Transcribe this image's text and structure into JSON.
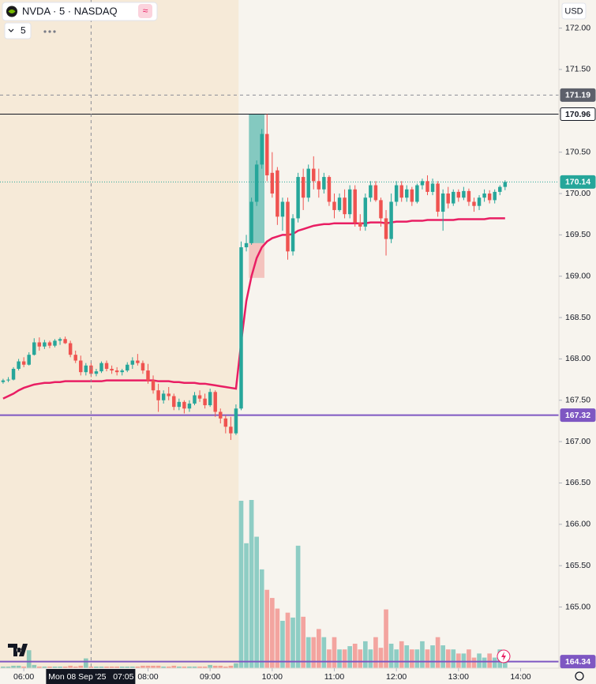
{
  "header": {
    "symbol": "NVDA · 5 · NASDAQ",
    "interval": "5",
    "currency": "USD"
  },
  "chart_data": {
    "type": "candlestick",
    "x": [
      "05:40",
      "05:45",
      "05:50",
      "05:55",
      "06:00",
      "06:05",
      "06:10",
      "06:15",
      "06:20",
      "06:25",
      "06:30",
      "06:35",
      "06:40",
      "06:45",
      "06:50",
      "06:55",
      "07:00",
      "07:05",
      "07:10",
      "07:15",
      "07:20",
      "07:25",
      "07:30",
      "07:35",
      "07:40",
      "07:45",
      "07:50",
      "07:55",
      "08:00",
      "08:05",
      "08:10",
      "08:15",
      "08:20",
      "08:25",
      "08:30",
      "08:35",
      "08:40",
      "08:45",
      "08:50",
      "08:55",
      "09:00",
      "09:05",
      "09:10",
      "09:15",
      "09:20",
      "09:25",
      "09:30",
      "09:35",
      "09:40",
      "09:45",
      "09:50",
      "09:55",
      "10:00",
      "10:05",
      "10:10",
      "10:15",
      "10:20",
      "10:25",
      "10:30",
      "10:35",
      "10:40",
      "10:45",
      "10:50",
      "10:55",
      "11:00",
      "11:05",
      "11:10",
      "11:15",
      "11:20",
      "11:25",
      "11:30",
      "11:35",
      "11:40",
      "11:45",
      "11:50",
      "11:55",
      "12:00",
      "12:05",
      "12:10",
      "12:15",
      "12:20",
      "12:25",
      "12:30",
      "12:35",
      "12:40",
      "12:45",
      "12:50",
      "12:55",
      "13:00",
      "13:05",
      "13:10",
      "13:15",
      "13:20",
      "13:25",
      "13:30",
      "13:35",
      "13:40",
      "13:45"
    ],
    "open": [
      167.72,
      167.74,
      167.75,
      167.88,
      167.97,
      167.93,
      168.05,
      168.2,
      168.15,
      168.2,
      168.16,
      168.22,
      168.24,
      168.19,
      168.05,
      167.98,
      167.84,
      167.92,
      167.82,
      167.85,
      167.95,
      167.88,
      167.86,
      167.84,
      167.86,
      167.93,
      167.98,
      167.95,
      167.86,
      167.74,
      167.62,
      167.5,
      167.58,
      167.55,
      167.42,
      167.48,
      167.4,
      167.46,
      167.56,
      167.52,
      167.44,
      167.6,
      167.36,
      167.28,
      167.18,
      167.1,
      167.4,
      169.35,
      169.4,
      169.9,
      170.35,
      170.72,
      170.25,
      170.28,
      169.72,
      169.9,
      169.3,
      169.7,
      170.2,
      169.95,
      170.3,
      170.15,
      170.05,
      170.2,
      169.9,
      169.8,
      169.95,
      169.75,
      170.05,
      169.65,
      169.6,
      169.95,
      170.1,
      169.92,
      169.7,
      169.45,
      169.9,
      170.1,
      169.95,
      170.05,
      169.9,
      170.1,
      170.15,
      170.02,
      170.12,
      169.78,
      170.0,
      169.88,
      170.02,
      169.95,
      170.03,
      169.9,
      169.85,
      169.95,
      170.0,
      169.92,
      170.02,
      170.08
    ],
    "high": [
      167.76,
      167.78,
      167.9,
      168.0,
      168.02,
      168.08,
      168.25,
      168.26,
      168.23,
      168.22,
      168.24,
      168.26,
      168.27,
      168.22,
      168.1,
      168.04,
      167.95,
      167.96,
      167.88,
      167.97,
      167.98,
      167.92,
      167.9,
      167.88,
      167.96,
      168.02,
      168.06,
      167.98,
      167.94,
      167.8,
      167.7,
      167.62,
      167.66,
      167.58,
      167.52,
      167.5,
      167.5,
      167.6,
      167.62,
      167.58,
      167.64,
      167.62,
      167.4,
      167.32,
      167.3,
      167.45,
      169.42,
      169.5,
      169.95,
      170.4,
      170.78,
      170.96,
      170.5,
      170.32,
      169.95,
      169.95,
      169.75,
      170.25,
      170.3,
      170.35,
      170.45,
      170.3,
      170.25,
      170.22,
      170.0,
      170.0,
      170.05,
      170.1,
      170.1,
      169.75,
      170.0,
      170.15,
      170.15,
      169.95,
      169.8,
      170.0,
      170.15,
      170.15,
      170.1,
      170.08,
      170.12,
      170.18,
      170.22,
      170.18,
      170.15,
      170.05,
      170.08,
      170.05,
      170.05,
      170.08,
      170.06,
      169.95,
      169.98,
      170.05,
      170.04,
      170.05,
      170.1,
      170.16
    ],
    "low": [
      167.7,
      167.72,
      167.74,
      167.86,
      167.9,
      167.92,
      168.04,
      168.1,
      168.12,
      168.13,
      168.14,
      168.17,
      168.18,
      168.02,
      167.95,
      167.8,
      167.8,
      167.78,
      167.79,
      167.83,
      167.85,
      167.82,
      167.8,
      167.8,
      167.84,
      167.88,
      167.92,
      167.82,
      167.7,
      167.58,
      167.36,
      167.46,
      167.5,
      167.38,
      167.38,
      167.34,
      167.36,
      167.44,
      167.48,
      167.4,
      167.42,
      167.3,
      167.22,
      167.1,
      167.02,
      167.08,
      167.38,
      169.3,
      169.38,
      169.85,
      170.3,
      170.15,
      169.95,
      169.62,
      169.55,
      169.2,
      169.25,
      169.65,
      169.8,
      169.9,
      170.05,
      169.95,
      170.0,
      169.85,
      169.7,
      169.78,
      169.7,
      169.7,
      169.6,
      169.55,
      169.55,
      169.9,
      169.9,
      169.6,
      169.25,
      169.4,
      169.85,
      169.9,
      169.9,
      169.85,
      169.88,
      170.05,
      169.98,
      169.98,
      169.72,
      169.55,
      169.82,
      169.85,
      169.9,
      169.92,
      169.85,
      169.78,
      169.8,
      169.9,
      169.88,
      169.88,
      169.98,
      170.04
    ],
    "close": [
      167.74,
      167.75,
      167.88,
      167.97,
      167.93,
      168.05,
      168.2,
      168.15,
      168.2,
      168.16,
      168.22,
      168.24,
      168.19,
      168.05,
      167.98,
      167.84,
      167.92,
      167.82,
      167.85,
      167.95,
      167.88,
      167.86,
      167.84,
      167.86,
      167.93,
      167.98,
      167.95,
      167.86,
      167.74,
      167.62,
      167.5,
      167.58,
      167.55,
      167.42,
      167.48,
      167.4,
      167.46,
      167.56,
      167.52,
      167.44,
      167.6,
      167.36,
      167.28,
      167.18,
      167.1,
      167.4,
      169.35,
      169.4,
      169.9,
      170.35,
      170.72,
      170.22,
      170.0,
      169.72,
      169.9,
      169.3,
      169.7,
      170.2,
      169.95,
      170.3,
      170.15,
      170.05,
      170.2,
      169.9,
      169.8,
      169.95,
      169.75,
      170.05,
      169.65,
      169.6,
      169.95,
      170.1,
      169.92,
      169.7,
      169.45,
      169.9,
      170.1,
      169.95,
      170.05,
      169.9,
      170.1,
      170.15,
      170.02,
      170.12,
      169.78,
      170.0,
      169.88,
      170.02,
      169.95,
      170.03,
      169.9,
      169.85,
      169.95,
      170.0,
      169.92,
      170.02,
      170.08,
      170.14
    ],
    "volume": [
      2,
      2,
      3,
      3,
      2,
      22,
      4,
      2,
      2,
      2,
      2,
      2,
      2,
      3,
      2,
      3,
      12,
      2,
      2,
      2,
      2,
      2,
      2,
      2,
      2,
      2,
      2,
      3,
      3,
      3,
      3,
      2,
      2,
      3,
      2,
      2,
      2,
      2,
      2,
      2,
      4,
      3,
      3,
      2,
      3,
      6,
      205,
      153,
      206,
      161,
      121,
      96,
      86,
      73,
      58,
      68,
      62,
      150,
      63,
      38,
      38,
      48,
      38,
      23,
      38,
      23,
      23,
      27,
      30,
      23,
      33,
      23,
      38,
      25,
      72,
      30,
      23,
      33,
      28,
      23,
      23,
      33,
      23,
      28,
      38,
      28,
      23,
      23,
      18,
      18,
      23,
      13,
      18,
      13,
      18,
      13,
      23,
      10
    ],
    "ma": {
      "color": "#e91e63",
      "values": [
        167.52,
        167.55,
        167.58,
        167.62,
        167.65,
        167.67,
        167.69,
        167.7,
        167.71,
        167.71,
        167.72,
        167.72,
        167.73,
        167.73,
        167.73,
        167.73,
        167.73,
        167.73,
        167.73,
        167.73,
        167.74,
        167.74,
        167.74,
        167.74,
        167.74,
        167.74,
        167.74,
        167.74,
        167.74,
        167.74,
        167.73,
        167.73,
        167.73,
        167.72,
        167.72,
        167.71,
        167.71,
        167.71,
        167.7,
        167.7,
        167.69,
        167.68,
        167.67,
        167.66,
        167.65,
        167.64,
        168.2,
        168.7,
        169.0,
        169.22,
        169.35,
        169.42,
        169.46,
        169.48,
        169.5,
        169.5,
        169.51,
        169.55,
        169.57,
        169.59,
        169.61,
        169.62,
        169.63,
        169.63,
        169.64,
        169.64,
        169.64,
        169.64,
        169.64,
        169.64,
        169.64,
        169.65,
        169.65,
        169.65,
        169.64,
        169.65,
        169.66,
        169.66,
        169.66,
        169.67,
        169.67,
        169.67,
        169.68,
        169.68,
        169.68,
        169.68,
        169.68,
        169.68,
        169.69,
        169.69,
        169.69,
        169.69,
        169.69,
        169.69,
        169.7,
        169.7,
        169.7,
        169.7
      ]
    },
    "up_color": "#26a69a",
    "down_color": "#ef5350",
    "session_open": "09:30",
    "xlim": [
      "05:37",
      "14:37"
    ],
    "xticks": [
      "06:00",
      "08:00",
      "09:00",
      "10:00",
      "11:00",
      "12:00",
      "13:00",
      "14:00"
    ],
    "ylim": [
      164.26,
      172.34
    ],
    "yticks": [
      {
        "value": 165,
        "label": "165.00"
      },
      {
        "value": 165.5,
        "label": "165.50"
      },
      {
        "value": 166,
        "label": "166.00"
      },
      {
        "value": 166.5,
        "label": "166.50"
      },
      {
        "value": 167,
        "label": "167.00"
      },
      {
        "value": 167.5,
        "label": "167.50"
      },
      {
        "value": 168,
        "label": "168.00"
      },
      {
        "value": 168.5,
        "label": "168.50"
      },
      {
        "value": 169,
        "label": "169.00"
      },
      {
        "value": 169.5,
        "label": "169.50"
      },
      {
        "value": 170,
        "label": "170.00"
      },
      {
        "value": 170.5,
        "label": "170.50"
      },
      {
        "value": 171,
        "label": "171.00"
      },
      {
        "value": 171.5,
        "label": "171.50"
      },
      {
        "value": 172,
        "label": "172.00"
      }
    ],
    "levels": [
      {
        "value": 170.96,
        "color": "#131722",
        "style": "solid"
      },
      {
        "value": 170.14,
        "color": "#26a69a",
        "style": "dotted"
      },
      {
        "value": 167.32,
        "color": "#7e57c2",
        "style": "solid"
      },
      {
        "value": 164.34,
        "color": "#7e57c2",
        "style": "solid"
      }
    ],
    "position": {
      "start": "09:40",
      "end": "09:50",
      "entry": 169.4,
      "target": 170.96,
      "stop": 168.98
    },
    "crosshair": {
      "x": "07:05",
      "y": 171.19,
      "label": "Mon 08 Sep '25   07:05"
    }
  }
}
